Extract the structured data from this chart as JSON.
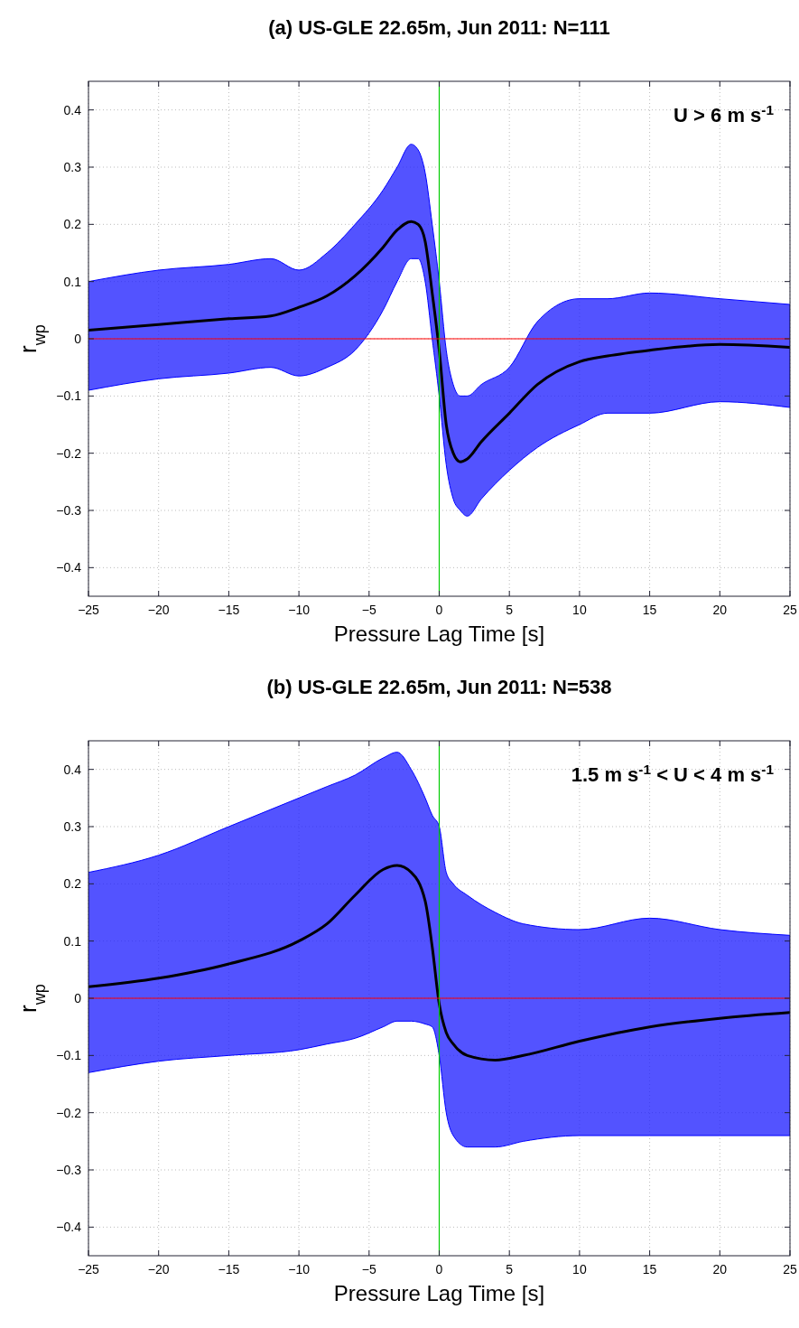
{
  "chart_data": [
    {
      "type": "line",
      "title": "(a) US-GLE 22.65m, Jun 2011:  N=111",
      "xlabel": "Pressure Lag Time [s]",
      "ylabel": "r$_{wp}$",
      "annotations": [
        "U > 6 m s$^{-1}$"
      ],
      "xlim": [
        -25,
        25
      ],
      "xticks": [
        -25,
        -20,
        -15,
        -10,
        -5,
        0,
        5,
        10,
        15,
        20,
        25
      ],
      "ylim": [
        -0.45,
        0.45
      ],
      "yticks": [
        -0.4,
        -0.3,
        -0.2,
        -0.1,
        0,
        0.1,
        0.2,
        0.3,
        0.4
      ],
      "grid": true,
      "ref_lines": [
        {
          "axis": "x",
          "value": 0,
          "color": "#00cc00"
        },
        {
          "axis": "y",
          "value": 0,
          "color": "#ff0000"
        }
      ],
      "series": [
        {
          "color": "#000000",
          "x": [
            -25,
            -20,
            -15,
            -12,
            -10,
            -8,
            -6,
            -4,
            -3,
            -2,
            -1.5,
            -1,
            -0.5,
            0,
            0.5,
            1,
            1.5,
            2,
            3,
            5,
            7,
            10,
            12,
            15,
            20,
            25
          ],
          "values": [
            0.015,
            0.025,
            0.035,
            0.04,
            0.055,
            0.075,
            0.11,
            0.16,
            0.19,
            0.205,
            0.2,
            0.17,
            0.08,
            -0.02,
            -0.15,
            -0.2,
            -0.215,
            -0.21,
            -0.18,
            -0.13,
            -0.08,
            -0.04,
            -0.03,
            -0.02,
            -0.01,
            -0.015
          ],
          "lower": [
            -0.09,
            -0.07,
            -0.06,
            -0.05,
            -0.065,
            -0.05,
            -0.02,
            0.05,
            0.1,
            0.14,
            0.14,
            0.1,
            0,
            -0.1,
            -0.22,
            -0.28,
            -0.3,
            -0.31,
            -0.28,
            -0.23,
            -0.19,
            -0.15,
            -0.13,
            -0.13,
            -0.11,
            -0.12
          ],
          "upper": [
            0.1,
            0.12,
            0.13,
            0.14,
            0.12,
            0.15,
            0.2,
            0.26,
            0.3,
            0.34,
            0.33,
            0.29,
            0.2,
            0.1,
            -0.02,
            -0.08,
            -0.1,
            -0.1,
            -0.08,
            -0.05,
            0.03,
            0.07,
            0.07,
            0.08,
            0.07,
            0.06
          ]
        }
      ]
    },
    {
      "type": "line",
      "title": "(b) US-GLE 22.65m, Jun 2011:  N=538",
      "xlabel": "Pressure Lag Time [s]",
      "ylabel": "r$_{wp}$",
      "annotations": [
        "1.5 m s$^{-1}$ < U < 4 m s$^{-1}$"
      ],
      "xlim": [
        -25,
        25
      ],
      "xticks": [
        -25,
        -20,
        -15,
        -10,
        -5,
        0,
        5,
        10,
        15,
        20,
        25
      ],
      "ylim": [
        -0.45,
        0.45
      ],
      "yticks": [
        -0.4,
        -0.3,
        -0.2,
        -0.1,
        0,
        0.1,
        0.2,
        0.3,
        0.4
      ],
      "grid": true,
      "ref_lines": [
        {
          "axis": "x",
          "value": 0,
          "color": "#00cc00"
        },
        {
          "axis": "y",
          "value": 0,
          "color": "#ff0000"
        }
      ],
      "series": [
        {
          "color": "#000000",
          "x": [
            -25,
            -20,
            -15,
            -10,
            -8,
            -6,
            -4,
            -3,
            -2,
            -1,
            -0.5,
            0,
            0.5,
            1,
            2,
            4,
            6,
            10,
            15,
            20,
            25
          ],
          "values": [
            0.02,
            0.035,
            0.06,
            0.1,
            0.13,
            0.18,
            0.225,
            0.232,
            0.22,
            0.17,
            0.09,
            -0.01,
            -0.06,
            -0.08,
            -0.1,
            -0.108,
            -0.1,
            -0.075,
            -0.05,
            -0.035,
            -0.025
          ],
          "lower": [
            -0.13,
            -0.11,
            -0.1,
            -0.09,
            -0.08,
            -0.07,
            -0.05,
            -0.04,
            -0.04,
            -0.045,
            -0.05,
            -0.1,
            -0.2,
            -0.24,
            -0.26,
            -0.26,
            -0.25,
            -0.24,
            -0.24,
            -0.24,
            -0.24
          ],
          "upper": [
            0.22,
            0.25,
            0.3,
            0.35,
            0.37,
            0.39,
            0.42,
            0.43,
            0.4,
            0.35,
            0.32,
            0.3,
            0.22,
            0.2,
            0.18,
            0.15,
            0.13,
            0.12,
            0.14,
            0.12,
            0.11
          ]
        }
      ]
    }
  ]
}
